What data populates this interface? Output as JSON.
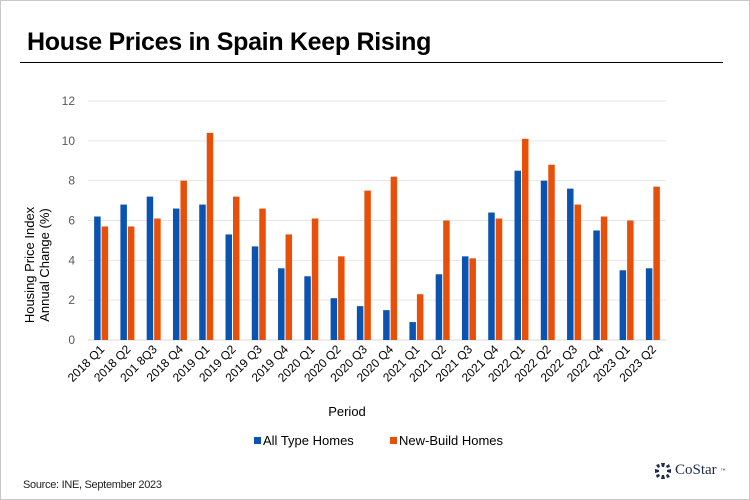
{
  "header": {
    "title": "House Prices in Spain Keep Rising"
  },
  "footer": {
    "source": "Source: INE, September 2023",
    "logo_text": "CoStar",
    "logo_tm": "™"
  },
  "colors": {
    "all_type": "#0b53b0",
    "new_build": "#e8500a",
    "grid": "#e6e6e6",
    "axis_text": "#595959"
  },
  "chart_data": {
    "type": "bar",
    "title": "House Prices in Spain Keep Rising",
    "xlabel": "Period",
    "ylabel": "Housing Price Index Annual Change (%)",
    "ylabel_lines": [
      "Housing Price Index",
      "Annual Change (%)"
    ],
    "ylim": [
      0,
      12
    ],
    "yticks": [
      0,
      2,
      4,
      6,
      8,
      10,
      12
    ],
    "grid": true,
    "legend_position": "bottom-center",
    "categories": [
      "2018 Q1",
      "2018 Q2",
      "201 8Q3",
      "2018 Q4",
      "2019 Q1",
      "2019 Q2",
      "2019 Q3",
      "2019 Q4",
      "2020 Q1",
      "2020 Q2",
      "2020 Q3",
      "2020 Q4",
      "2021 Q1",
      "2021 Q2",
      "2021 Q3",
      "2021 Q4",
      "2022 Q1",
      "2022 Q2",
      "2022 Q3",
      "2022 Q4",
      "2023 Q1",
      "2023 Q2"
    ],
    "series": [
      {
        "name": "All Type Homes",
        "color": "#0b53b0",
        "values": [
          6.2,
          6.8,
          7.2,
          6.6,
          6.8,
          5.3,
          4.7,
          3.6,
          3.2,
          2.1,
          1.7,
          1.5,
          0.9,
          3.3,
          4.2,
          6.4,
          8.5,
          8.0,
          7.6,
          5.5,
          3.5,
          3.6
        ]
      },
      {
        "name": "New-Build Homes",
        "color": "#e8500a",
        "values": [
          5.7,
          5.7,
          6.1,
          8.0,
          10.4,
          7.2,
          6.6,
          5.3,
          6.1,
          4.2,
          7.5,
          8.2,
          2.3,
          6.0,
          4.1,
          6.1,
          10.1,
          8.8,
          6.8,
          6.2,
          6.0,
          7.7
        ]
      }
    ]
  }
}
